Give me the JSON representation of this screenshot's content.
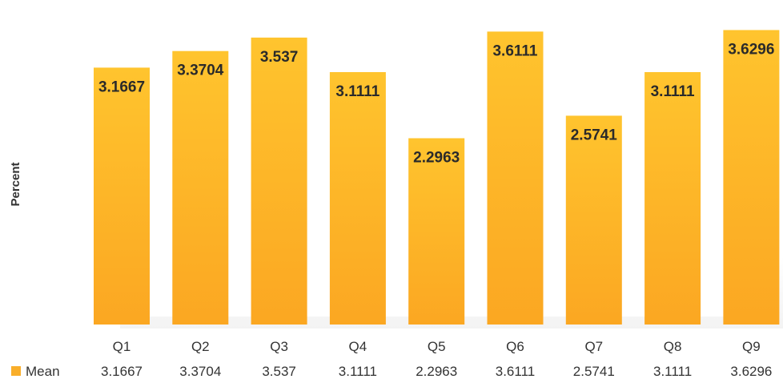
{
  "chart_data": {
    "type": "bar",
    "title": "",
    "xlabel": "",
    "ylabel": "Percent",
    "categories": [
      "Q1",
      "Q2",
      "Q3",
      "Q4",
      "Q5",
      "Q6",
      "Q7",
      "Q8",
      "Q9"
    ],
    "series": [
      {
        "name": "Mean",
        "values": [
          3.1667,
          3.3704,
          3.537,
          3.1111,
          2.2963,
          3.6111,
          2.5741,
          3.1111,
          3.6296
        ],
        "labels": [
          "3.1667",
          "3.3704",
          "3.537",
          "3.1111",
          "2.2963",
          "3.6111",
          "2.5741",
          "3.1111",
          "3.6296"
        ]
      }
    ],
    "ylim": [
      0,
      4
    ],
    "grid": false,
    "legend": "bottom-left data table",
    "colors": {
      "bar_top": "#FFC42E",
      "bar_bottom": "#FBA722",
      "legend_swatch": "#F9AE2A"
    }
  }
}
